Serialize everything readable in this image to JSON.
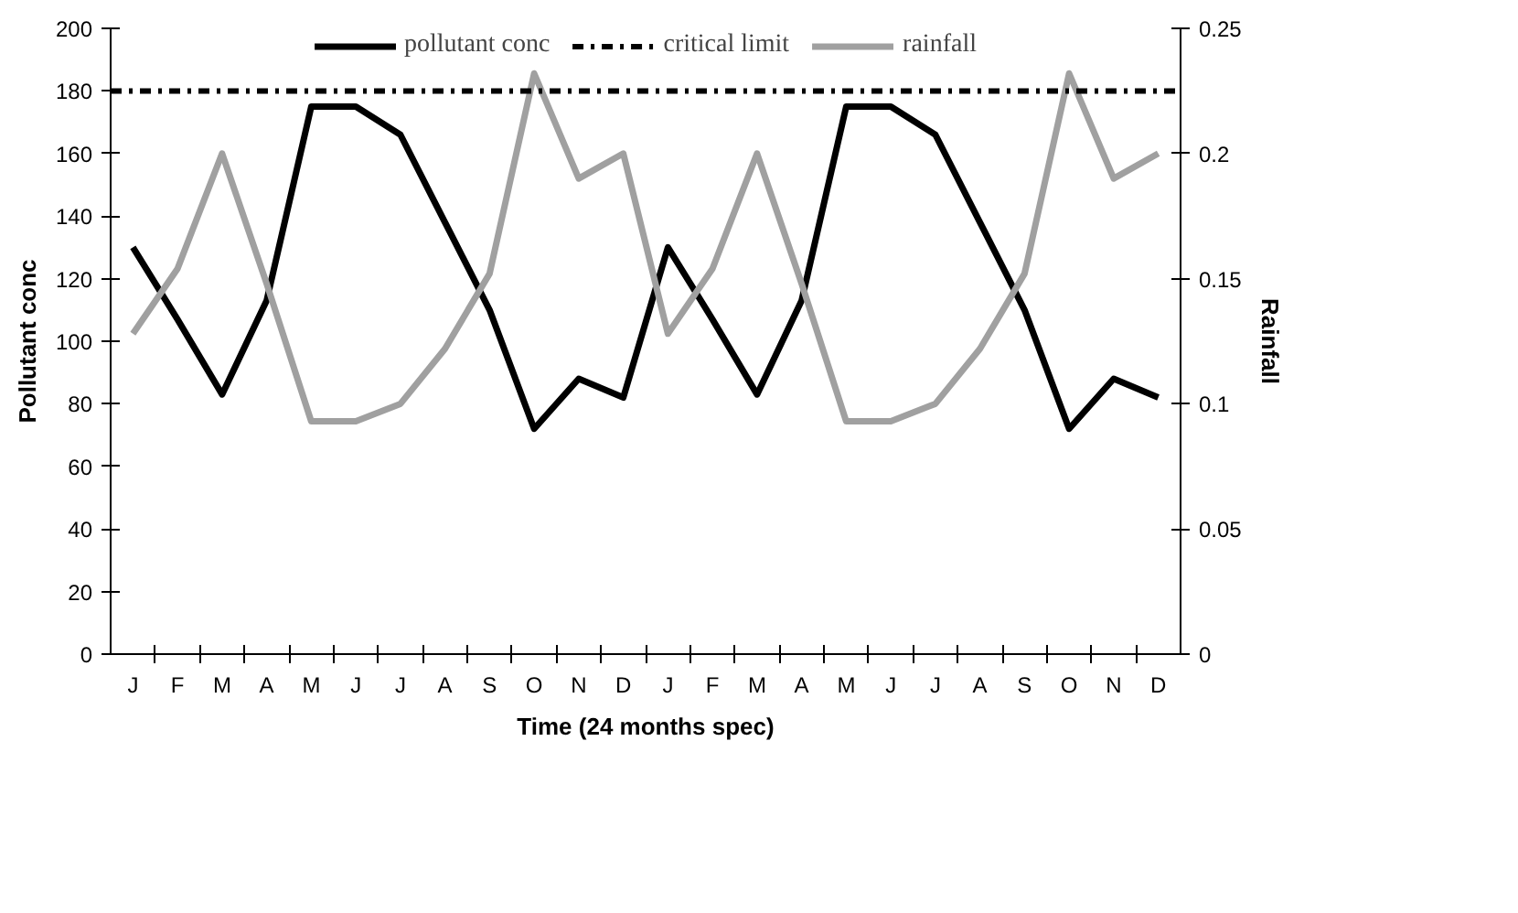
{
  "chart_data": {
    "type": "line",
    "xlabel": "Time (24 months spec)",
    "ylabel": "Pollutant conc",
    "y2label": "Rainfall",
    "categories": [
      "J",
      "F",
      "M",
      "A",
      "M",
      "J",
      "J",
      "A",
      "S",
      "O",
      "N",
      "D",
      "J",
      "F",
      "M",
      "A",
      "M",
      "J",
      "J",
      "A",
      "S",
      "O",
      "N",
      "D"
    ],
    "series": [
      {
        "name": "pollutant conc",
        "color": "#000000",
        "values": [
          130,
          107,
          83,
          113,
          175,
          175,
          166,
          138,
          110,
          72,
          88,
          82,
          130,
          107,
          83,
          113,
          175,
          175,
          166,
          138,
          110,
          72,
          88,
          82
        ]
      },
      {
        "name": "rainfall",
        "color": "#a0a0a0",
        "axis": "y2",
        "values": [
          0.128,
          0.154,
          0.2,
          0.148,
          0.093,
          0.093,
          0.1,
          0.122,
          0.152,
          0.232,
          0.19,
          0.2,
          0.128,
          0.154,
          0.2,
          0.148,
          0.093,
          0.093,
          0.1,
          0.122,
          0.152,
          0.232,
          0.19,
          0.2
        ]
      }
    ],
    "ref_lines": [
      {
        "axis": "y",
        "value": 180,
        "label": "critical limit",
        "color": "#000000",
        "line_style": "dashed"
      }
    ],
    "ylim": [
      0,
      200
    ],
    "yticks": [
      0,
      20,
      40,
      60,
      80,
      100,
      120,
      140,
      160,
      180,
      200
    ],
    "y2lim": [
      0,
      0.25
    ],
    "y2ticks": [
      0,
      0.05,
      0.1,
      0.15,
      0.2,
      0.25
    ],
    "grid": false,
    "legend": "top",
    "marker": "none",
    "line_style": "solid"
  }
}
